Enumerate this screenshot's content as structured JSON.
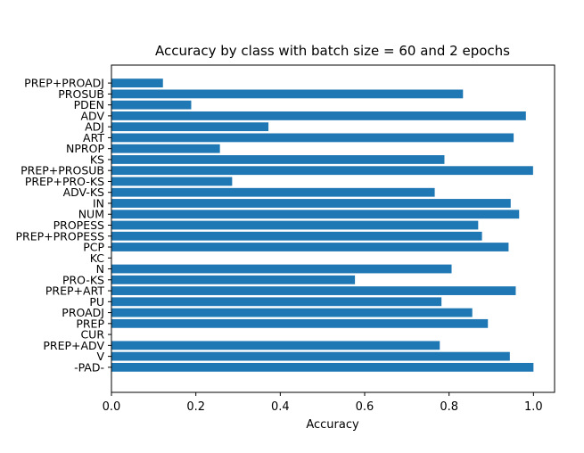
{
  "chart_data": {
    "type": "bar",
    "orientation": "horizontal",
    "title": "Accuracy by class with batch size = 60 and 2 epochs",
    "xlabel": "Accuracy",
    "ylabel": "",
    "xlim": [
      0.0,
      1.05
    ],
    "xticks": [
      "0.0",
      "0.2",
      "0.4",
      "0.6",
      "0.8",
      "1.0"
    ],
    "grid": false,
    "bar_color": "#1f77b4",
    "categories": [
      "-PAD-",
      "V",
      "PREP+ADV",
      "CUR",
      "PREP",
      "PROADJ",
      "PU",
      "PREP+ART",
      "PRO-KS",
      "N",
      "KC",
      "PCP",
      "PREP+PROPESS",
      "PROPESS",
      "NUM",
      "IN",
      "ADV-KS",
      "PREP+PRO-KS",
      "PREP+PROSUB",
      "KS",
      "NPROP",
      "ART",
      "ADJ",
      "ADV",
      "PDEN",
      "PROSUB",
      "PREP+PROADJ"
    ],
    "values": [
      1.0,
      0.944,
      0.778,
      0.0,
      0.892,
      0.855,
      0.782,
      0.958,
      0.577,
      0.806,
      0.0,
      0.941,
      0.878,
      0.869,
      0.966,
      0.946,
      0.766,
      0.286,
      0.999,
      0.789,
      0.257,
      0.953,
      0.372,
      0.982,
      0.189,
      0.833,
      0.122
    ]
  }
}
